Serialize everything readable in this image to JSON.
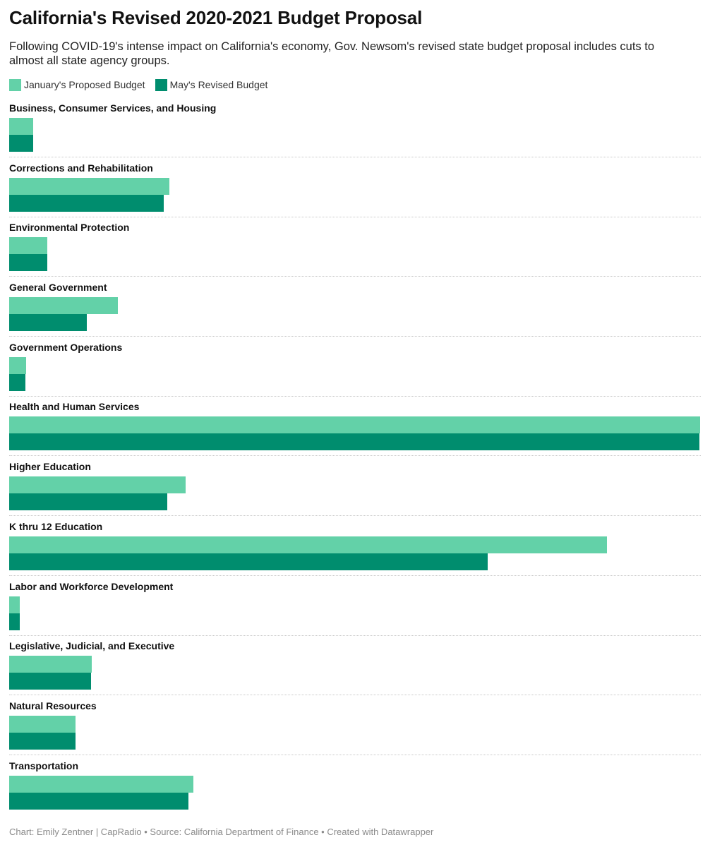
{
  "header": {
    "title": "California's Revised 2020-2021 Budget Proposal",
    "subtitle": "Following COVID-19's intense impact on California's economy, Gov. Newsom's revised state budget proposal includes cuts to almost all state agency groups."
  },
  "legend": {
    "january_label": "January's Proposed Budget",
    "may_label": "May's Revised Budget"
  },
  "colors": {
    "january": "#63d1a8",
    "may": "#008d6e"
  },
  "footer": {
    "credit": "Chart: Emily Zentner | CapRadio • Source: California Department of Finance • Created with Datawrapper"
  },
  "chart_data": {
    "type": "bar",
    "orientation": "horizontal",
    "title": "California's Revised 2020-2021 Budget Proposal",
    "categories": [
      "Business, Consumer Services, and Housing",
      "Corrections and Rehabilitation",
      "Environmental Protection",
      "General Government",
      "Government Operations",
      "Health and Human Services",
      "Higher Education",
      "K thru 12 Education",
      "Labor and Workforce Development",
      "Legislative, Judicial, and Executive",
      "Natural Resources",
      "Transportation"
    ],
    "series": [
      {
        "name": "January's Proposed Budget",
        "values": [
          3.5,
          23.2,
          5.5,
          15.7,
          2.5,
          100.0,
          25.5,
          86.5,
          1.5,
          11.9,
          9.6,
          26.7
        ]
      },
      {
        "name": "May's Revised Budget",
        "values": [
          3.5,
          22.4,
          5.5,
          11.2,
          2.4,
          99.9,
          22.9,
          69.3,
          1.5,
          11.8,
          9.6,
          25.9
        ]
      }
    ],
    "xlim": [
      0,
      100
    ],
    "grid": false,
    "legend_position": "top-left"
  }
}
